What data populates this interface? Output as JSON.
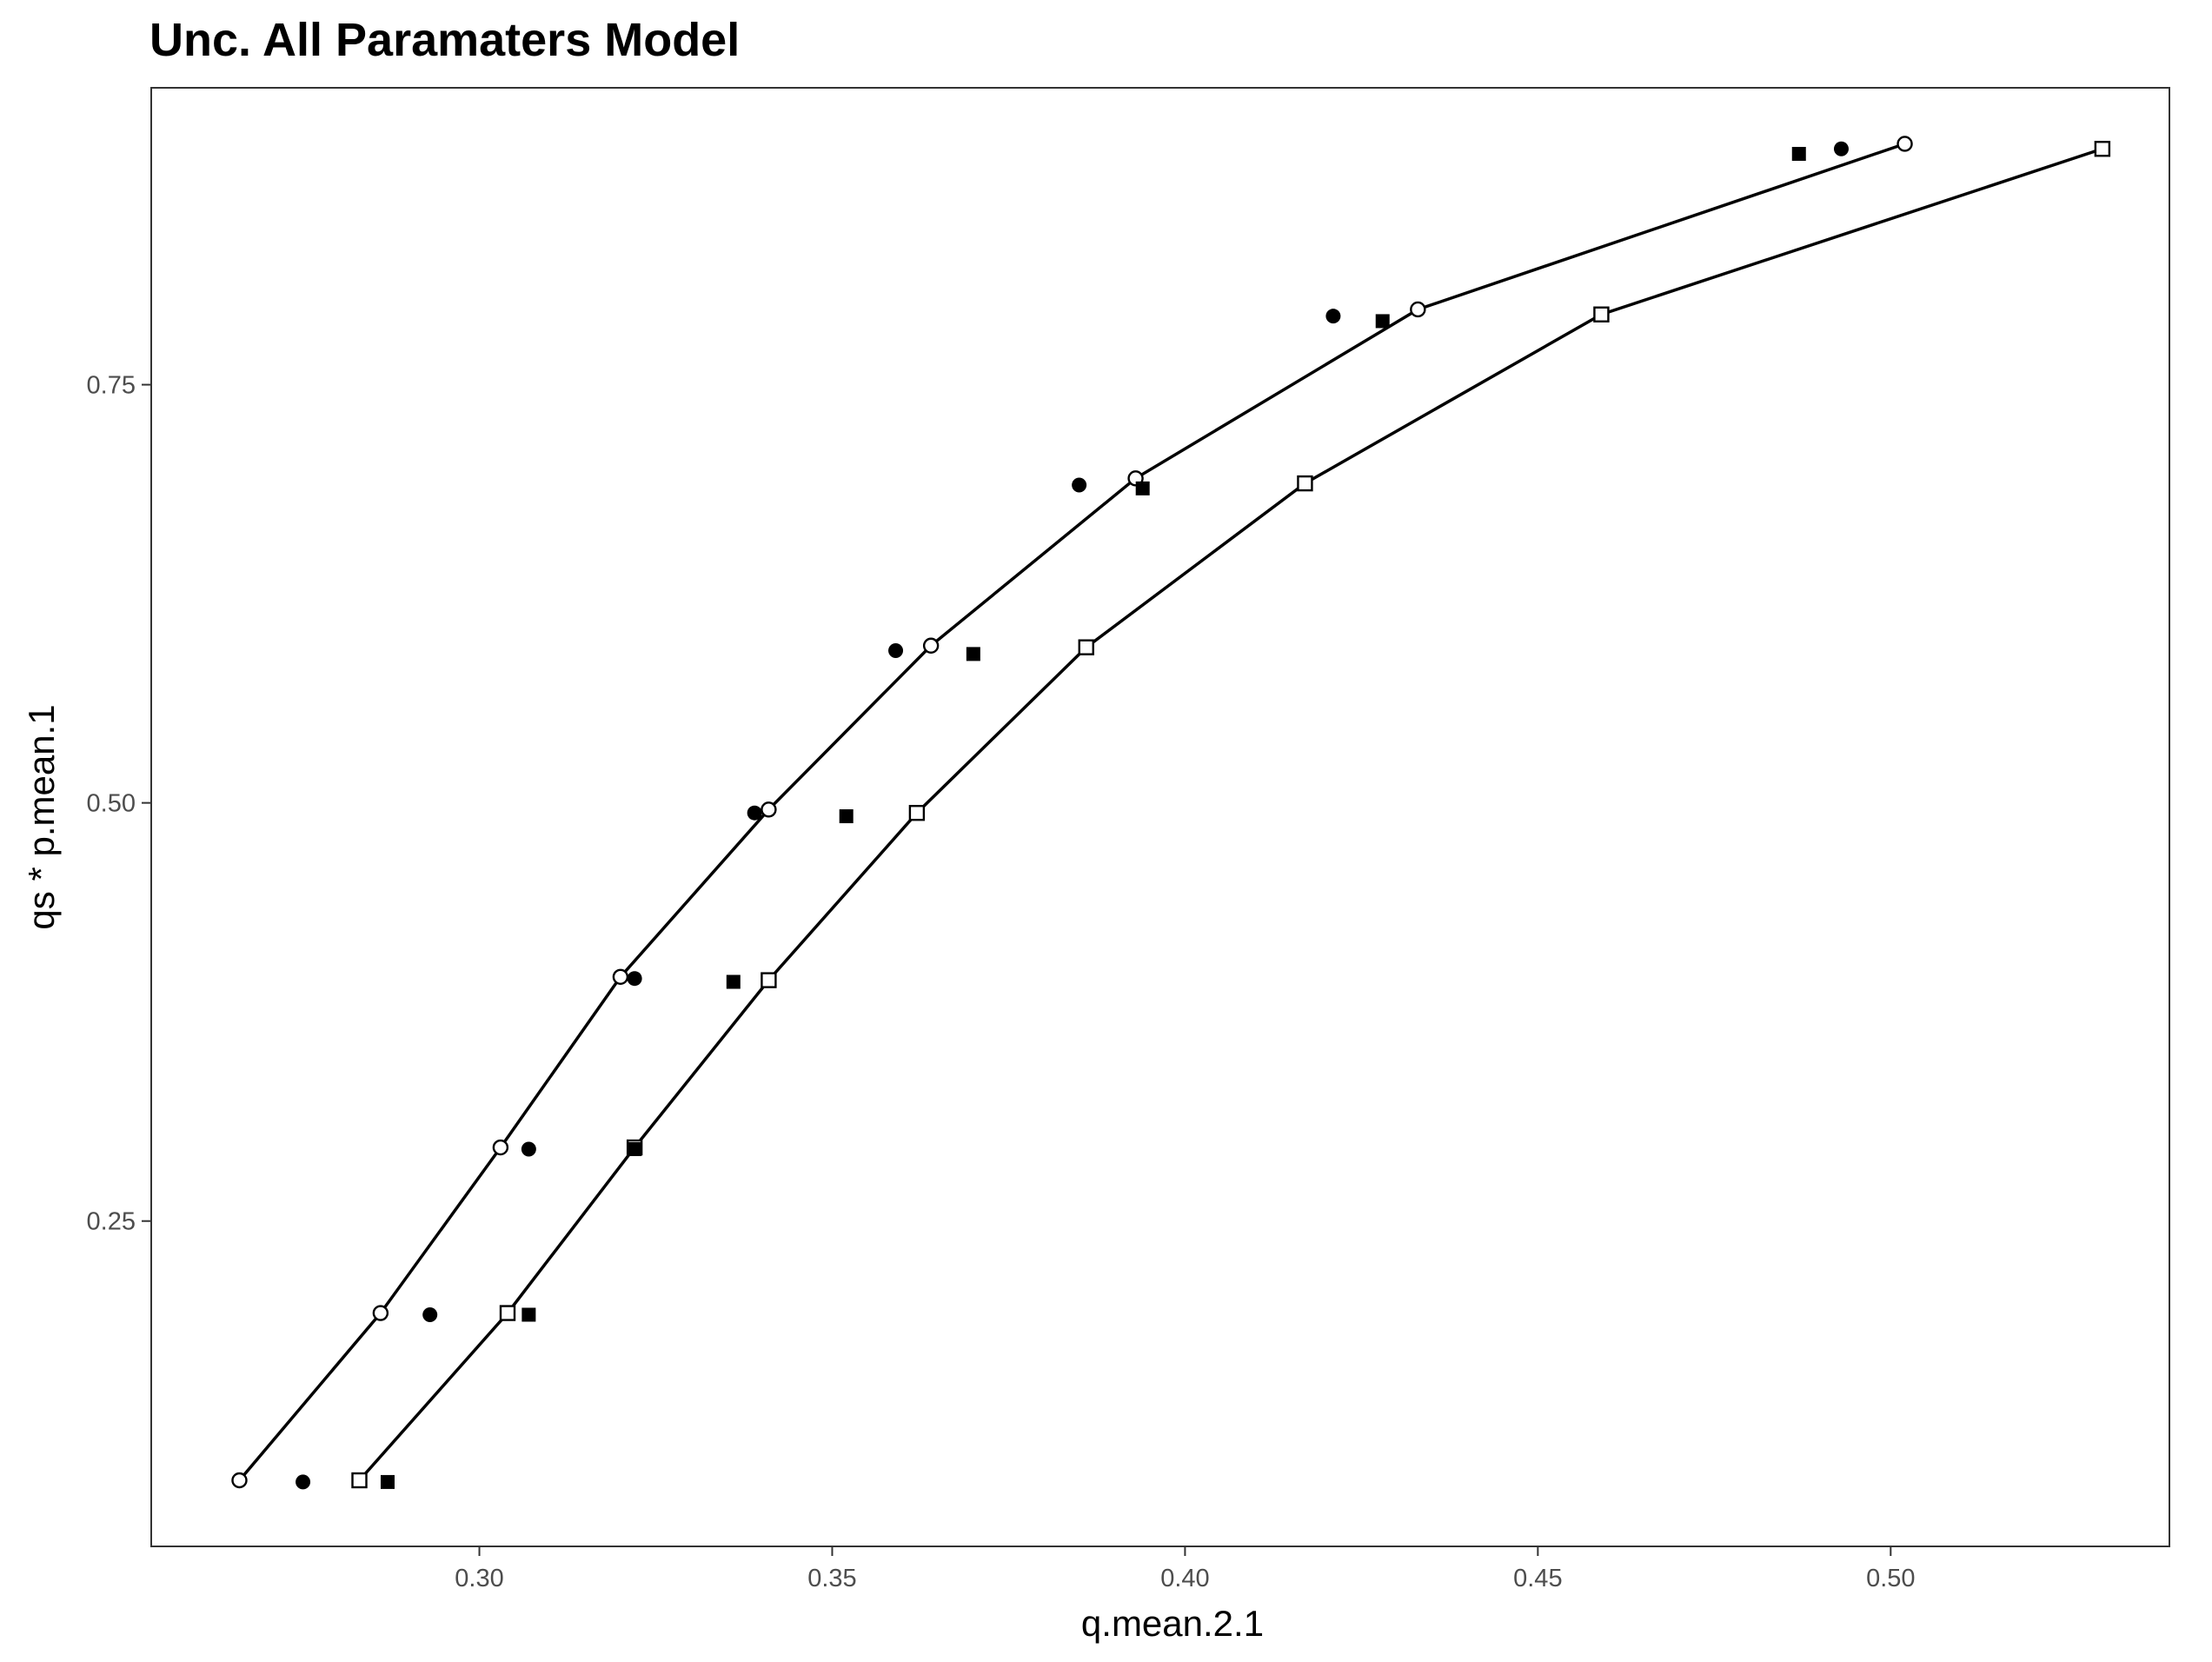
{
  "chart_data": {
    "type": "scatter",
    "title": "Unc. All Paramaters Model",
    "xlabel": "q.mean.2.1",
    "ylabel": "qs * p.mean.1",
    "xlim": [
      0.2535,
      0.5395
    ],
    "ylim": [
      0.0555,
      0.9275
    ],
    "x_ticks": [
      {
        "value": 0.3,
        "label": "0.30"
      },
      {
        "value": 0.35,
        "label": "0.35"
      },
      {
        "value": 0.4,
        "label": "0.40"
      },
      {
        "value": 0.45,
        "label": "0.45"
      },
      {
        "value": 0.5,
        "label": "0.50"
      }
    ],
    "y_ticks": [
      {
        "value": 0.25,
        "label": "0.25"
      },
      {
        "value": 0.5,
        "label": "0.50"
      },
      {
        "value": 0.75,
        "label": "0.75"
      }
    ],
    "grid": false,
    "legend": "none",
    "series": [
      {
        "marker": "open-circle",
        "connected": true,
        "points": [
          [
            0.266,
            0.095
          ],
          [
            0.286,
            0.195
          ],
          [
            0.303,
            0.294
          ],
          [
            0.32,
            0.396
          ],
          [
            0.341,
            0.496
          ],
          [
            0.364,
            0.594
          ],
          [
            0.393,
            0.694
          ],
          [
            0.433,
            0.795
          ],
          [
            0.502,
            0.894
          ]
        ]
      },
      {
        "marker": "filled-circle",
        "connected": false,
        "points": [
          [
            0.275,
            0.094
          ],
          [
            0.293,
            0.194
          ],
          [
            0.307,
            0.293
          ],
          [
            0.322,
            0.395
          ],
          [
            0.339,
            0.494
          ],
          [
            0.359,
            0.591
          ],
          [
            0.385,
            0.69
          ],
          [
            0.421,
            0.791
          ],
          [
            0.493,
            0.891
          ]
        ]
      },
      {
        "marker": "open-square",
        "connected": true,
        "points": [
          [
            0.283,
            0.095
          ],
          [
            0.304,
            0.195
          ],
          [
            0.322,
            0.294
          ],
          [
            0.341,
            0.394
          ],
          [
            0.362,
            0.494
          ],
          [
            0.386,
            0.593
          ],
          [
            0.417,
            0.691
          ],
          [
            0.459,
            0.792
          ],
          [
            0.53,
            0.891
          ]
        ]
      },
      {
        "marker": "filled-square",
        "connected": false,
        "points": [
          [
            0.287,
            0.094
          ],
          [
            0.307,
            0.194
          ],
          [
            0.322,
            0.293
          ],
          [
            0.336,
            0.393
          ],
          [
            0.352,
            0.492
          ],
          [
            0.37,
            0.589
          ],
          [
            0.394,
            0.688
          ],
          [
            0.428,
            0.788
          ],
          [
            0.487,
            0.888
          ]
        ]
      }
    ]
  }
}
